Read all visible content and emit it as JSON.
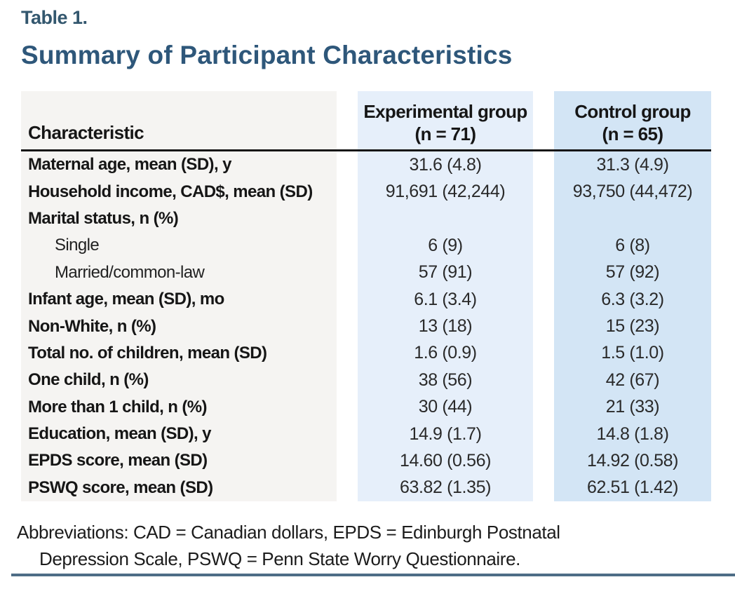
{
  "header": {
    "table_label": "Table 1.",
    "title": "Summary of Participant Characteristics"
  },
  "table": {
    "columns": {
      "characteristic": "Characteristic",
      "experimental_line1": "Experimental group",
      "experimental_line2": "(n = 71)",
      "control_line1": "Control group",
      "control_line2": "(n = 65)"
    },
    "rows": [
      {
        "label": "Maternal age, mean (SD), y",
        "indent": false,
        "experimental": "31.6 (4.8)",
        "control": "31.3 (4.9)"
      },
      {
        "label": "Household income, CAD$, mean (SD)",
        "indent": false,
        "experimental": "91,691 (42,244)",
        "control": "93,750 (44,472)"
      },
      {
        "label": "Marital status, n (%)",
        "indent": false,
        "experimental": "",
        "control": ""
      },
      {
        "label": "Single",
        "indent": true,
        "experimental": "6 (9)",
        "control": "6 (8)"
      },
      {
        "label": "Married/common-law",
        "indent": true,
        "experimental": "57 (91)",
        "control": "57 (92)"
      },
      {
        "label": "Infant age, mean (SD), mo",
        "indent": false,
        "experimental": "6.1 (3.4)",
        "control": "6.3 (3.2)"
      },
      {
        "label": "Non-White, n (%)",
        "indent": false,
        "experimental": "13 (18)",
        "control": "15 (23)"
      },
      {
        "label": "Total no. of children, mean (SD)",
        "indent": false,
        "experimental": "1.6 (0.9)",
        "control": "1.5 (1.0)"
      },
      {
        "label": "One child, n (%)",
        "indent": false,
        "experimental": "38 (56)",
        "control": "42 (67)"
      },
      {
        "label": "More than 1 child, n (%)",
        "indent": false,
        "experimental": "30 (44)",
        "control": "21 (33)"
      },
      {
        "label": "Education, mean (SD), y",
        "indent": false,
        "experimental": "14.9 (1.7)",
        "control": "14.8 (1.8)"
      },
      {
        "label": "EPDS score, mean (SD)",
        "indent": false,
        "experimental": "14.60 (0.56)",
        "control": "14.92 (0.58)"
      },
      {
        "label": "PSWQ score, mean (SD)",
        "indent": false,
        "experimental": "63.82 (1.35)",
        "control": "62.51 (1.42)"
      }
    ]
  },
  "footnote": {
    "line1": "Abbreviations: CAD = Canadian dollars, EPDS = Edinburgh Postnatal",
    "line2": "Depression Scale, PSWQ = Penn State Worry Questionnaire."
  },
  "colors": {
    "title_blue": "#2e577a",
    "label_blue": "#33576e",
    "rule_blue": "#4e6d86",
    "header_rule": "#161616",
    "char_col_bg": "#f5f4f2",
    "exp_col_bg": "#e6effa",
    "ctrl_col_bg": "#d3e5f5",
    "text_black": "#161616",
    "value_gray": "#2a2a2a"
  }
}
